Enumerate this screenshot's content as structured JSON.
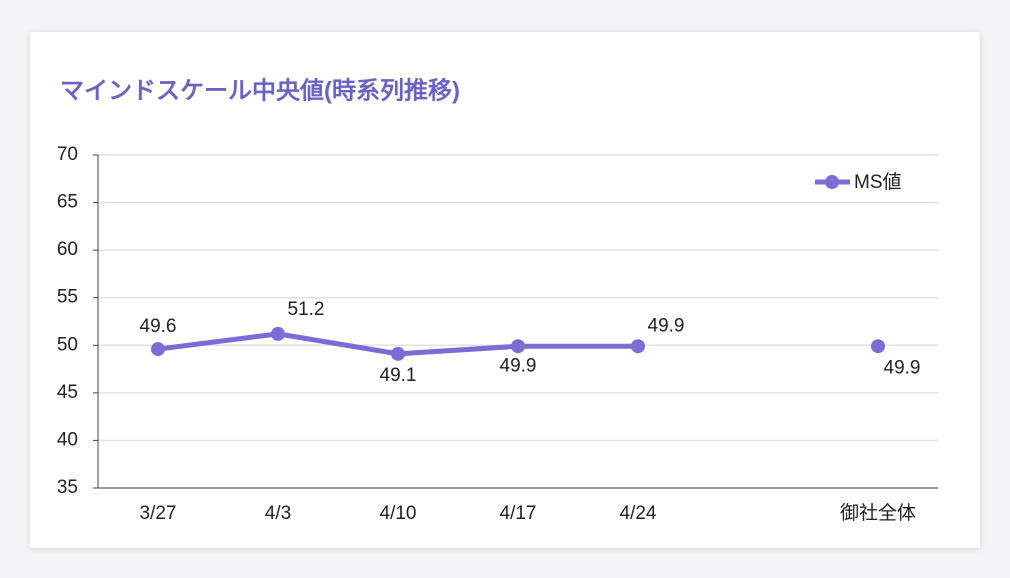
{
  "chart_data": {
    "type": "line",
    "title": "マインドスケール中央値(時系列推移)",
    "categories": [
      "3/27",
      "4/3",
      "4/10",
      "4/17",
      "4/24",
      null,
      "御社全体"
    ],
    "series": [
      {
        "name": "MS値",
        "color": "#7f6bd6",
        "values": [
          49.6,
          51.2,
          49.1,
          49.9,
          49.9,
          null,
          49.9
        ]
      }
    ],
    "ylim": [
      35,
      70
    ],
    "yticks": [
      35,
      40,
      45,
      50,
      55,
      60,
      65,
      70
    ],
    "grid": true,
    "legend": "top-right"
  }
}
